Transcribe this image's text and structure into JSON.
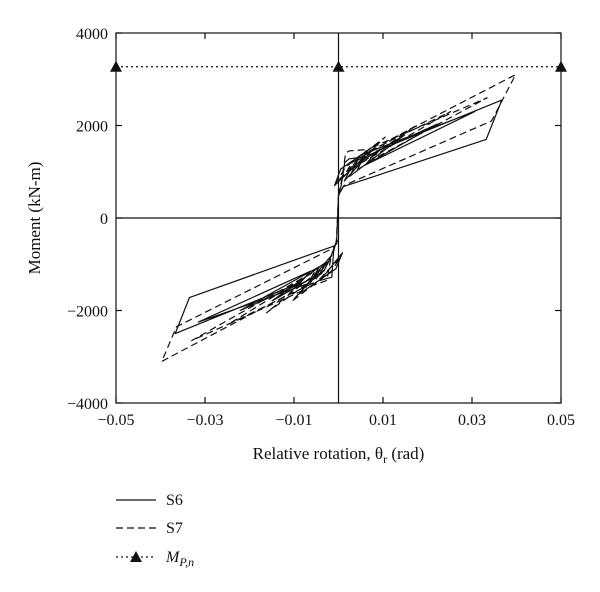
{
  "chart_data": {
    "type": "line",
    "xlabel": "Relative rotation, θr (rad)",
    "ylabel": "Moment (kN-m)",
    "xlim": [
      -0.05,
      0.05
    ],
    "ylim": [
      -4000,
      4000
    ],
    "x_ticks": [
      -0.05,
      -0.03,
      -0.01,
      0.01,
      0.03,
      0.05
    ],
    "x_tick_labels": [
      "−0.05",
      "−0.03",
      "−0.01",
      "0.01",
      "0.03",
      "0.05"
    ],
    "y_ticks": [
      -4000,
      -2000,
      0,
      2000,
      4000
    ],
    "y_tick_labels": [
      "−4000",
      "−2000",
      "0",
      "2000",
      "4000"
    ],
    "grid": false,
    "legend_position": "bottom-left",
    "series": [
      {
        "name": "S6",
        "style": "solid",
        "color": "#111111",
        "x": [
          0,
          0.0006,
          0.0014,
          0.0024,
          0.0058,
          -0.0009,
          0.0005,
          0.0092,
          0.0013,
          0.0029,
          0.0148,
          0.0025,
          0.0043,
          0.0222,
          0.0043,
          0.0061,
          0.0306,
          0.0061,
          0.0086,
          0.0367,
          0.0332,
          0.0011,
          0.0004,
          0,
          -0.0004,
          -0.0011,
          -0.0015,
          -0.0041,
          0.0009,
          -0.0006,
          -0.0089,
          -0.0015,
          -0.0033,
          -0.0149,
          -0.0027,
          -0.0045,
          -0.0221,
          -0.0043,
          -0.0063,
          -0.0315,
          -0.0063,
          -0.0086,
          -0.0367,
          -0.0335,
          -0.0009,
          0
        ],
        "y": [
          500,
          700,
          1200,
          1280,
          1320,
          700,
          1060,
          1640,
          800,
          1100,
          1790,
          900,
          1250,
          2030,
          1050,
          1400,
          2300,
          1150,
          1450,
          2550,
          1700,
          680,
          560,
          500,
          -470,
          -720,
          -1280,
          -1350,
          -750,
          -1100,
          -1650,
          -800,
          -1150,
          -1790,
          -950,
          -1250,
          -2000,
          -1050,
          -1400,
          -2250,
          -1150,
          -1400,
          -2500,
          -1720,
          -600,
          -470
        ]
      },
      {
        "name": "S7",
        "style": "dashed",
        "color": "#111111",
        "x": [
          0,
          0.0007,
          0.0016,
          0.0024,
          0.0065,
          -0.0006,
          0.0016,
          0.0105,
          0.0012,
          0.003,
          0.0175,
          0.0022,
          0.0048,
          0.0252,
          0.0044,
          0.0069,
          0.0334,
          0.0074,
          0.0107,
          0.0398,
          0.0344,
          0.0012,
          0.0004,
          0,
          -0.0005,
          -0.0016,
          -0.0026,
          -0.0055,
          0.0004,
          -0.0016,
          -0.0105,
          -0.0019,
          -0.0038,
          -0.0162,
          -0.0032,
          -0.0056,
          -0.0248,
          -0.0053,
          -0.0076,
          -0.033,
          -0.0081,
          -0.0112,
          -0.0397,
          -0.0364,
          -0.0012,
          0
        ],
        "y": [
          500,
          800,
          1400,
          1450,
          1480,
          750,
          1100,
          1750,
          900,
          1200,
          2000,
          1000,
          1350,
          2300,
          1150,
          1500,
          2600,
          1250,
          1650,
          3100,
          2100,
          700,
          560,
          480,
          -520,
          -800,
          -1350,
          -1450,
          -850,
          -1150,
          -1800,
          -900,
          -1200,
          -2050,
          -1050,
          -1400,
          -2300,
          -1150,
          -1550,
          -2650,
          -1300,
          -1650,
          -3100,
          -2350,
          -650,
          -500
        ]
      }
    ],
    "reference_line": {
      "name": "MP,n",
      "style": "dotted",
      "marker": "triangle",
      "y": 3270,
      "marker_x": [
        -0.05,
        0,
        0.05
      ]
    }
  },
  "legend": {
    "items": [
      {
        "label": "S6",
        "style": "solid"
      },
      {
        "label": "S7",
        "style": "dashed"
      },
      {
        "label_main": "M",
        "label_sub": "P,n",
        "style": "dotted-triangle"
      }
    ]
  }
}
